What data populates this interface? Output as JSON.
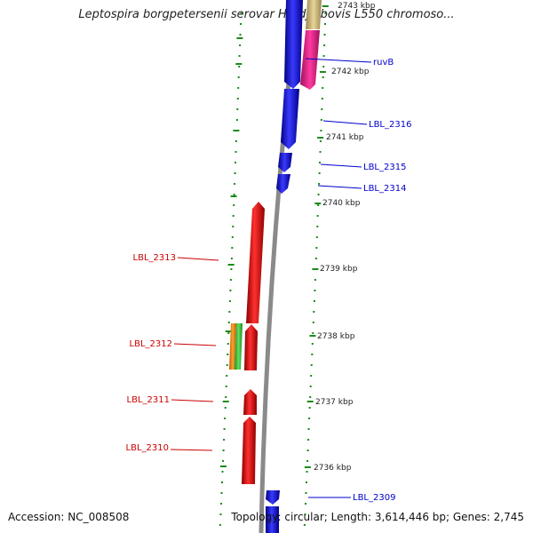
{
  "header": {
    "title": "Leptospira borgpetersenii serovar Hardjo-bovis L550 chromoso..."
  },
  "footer": {
    "accession": "Accession: NC_008508",
    "topology": "Topology: circular; Length: 3,614,446 bp; Genes: 2,745"
  },
  "colors": {
    "forward_strand": "#0000ff",
    "reverse_strand": "#ff0000",
    "gene_magenta": "#ff1493",
    "gene_tan": "#c8b478",
    "gene_orange": "#ff8c00",
    "gene_green": "#33cc33",
    "backbone": "#8a8a8a",
    "tick_green": "#1a8a1a",
    "forward_label": "#0000cc",
    "reverse_label": "#cc0000"
  },
  "scale": {
    "unit": "kbp",
    "ticks": [
      "2743 kbp",
      "2742 kbp",
      "2741 kbp",
      "2740 kbp",
      "2739 kbp",
      "2738 kbp",
      "2737 kbp",
      "2736 kbp"
    ]
  },
  "genes": {
    "forward": [
      "ruvB",
      "LBL_2316",
      "LBL_2315",
      "LBL_2314",
      "LBL_2309"
    ],
    "reverse": [
      "LBL_2313",
      "LBL_2312",
      "LBL_2311",
      "LBL_2310"
    ]
  }
}
